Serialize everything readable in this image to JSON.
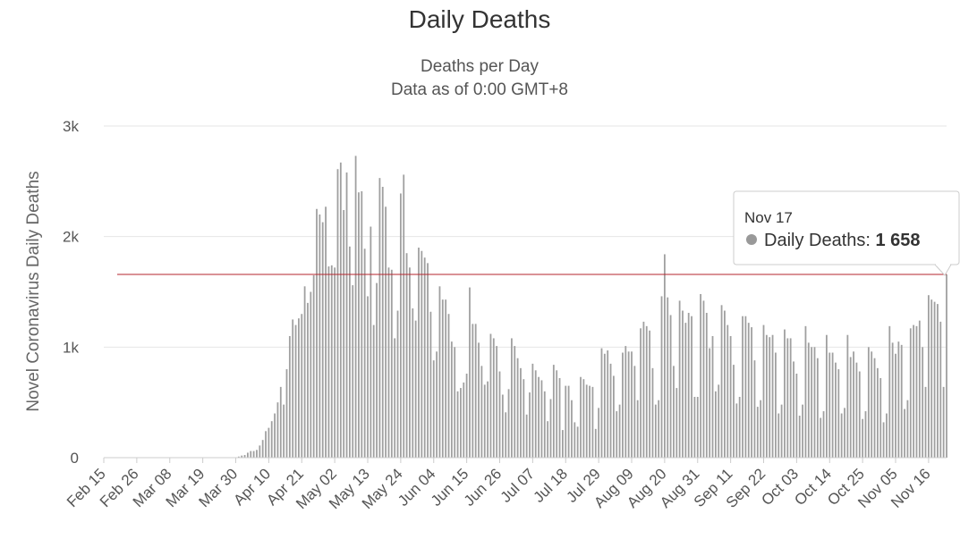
{
  "chart_data": {
    "type": "bar",
    "title": "Daily Deaths",
    "subtitle_line1": "Deaths per Day",
    "subtitle_line2": "Data as of 0:00 GMT+8",
    "ylabel": "Novel Coronavirus Daily Deaths",
    "ylim": [
      0,
      3000
    ],
    "yticks": [
      {
        "value": 0,
        "label": "0"
      },
      {
        "value": 1000,
        "label": "1k"
      },
      {
        "value": 2000,
        "label": "2k"
      },
      {
        "value": 3000,
        "label": "3k"
      }
    ],
    "start_date": "Feb 15",
    "x_tick_labels": [
      "Feb 15",
      "Feb 26",
      "Mar 08",
      "Mar 19",
      "Mar 30",
      "Apr 10",
      "Apr 21",
      "May 02",
      "May 13",
      "May 24",
      "Jun 04",
      "Jun 15",
      "Jun 26",
      "Jul 07",
      "Jul 18",
      "Jul 29",
      "Aug 09",
      "Aug 20",
      "Aug 31",
      "Sep 11",
      "Sep 22",
      "Oct 03",
      "Oct 14",
      "Oct 25",
      "Nov 05",
      "Nov 16"
    ],
    "series": [
      {
        "name": "Daily Deaths",
        "color": "#a0a0a0",
        "values": [
          0,
          0,
          0,
          0,
          0,
          0,
          0,
          0,
          0,
          0,
          0,
          0,
          0,
          0,
          0,
          0,
          0,
          0,
          0,
          0,
          0,
          0,
          0,
          0,
          0,
          0,
          0,
          0,
          0,
          0,
          0,
          0,
          0,
          0,
          0,
          0,
          0,
          0,
          0,
          0,
          0,
          0,
          0,
          2,
          3,
          10,
          19,
          24,
          45,
          60,
          60,
          70,
          110,
          160,
          240,
          270,
          330,
          400,
          500,
          640,
          480,
          800,
          1100,
          1250,
          1200,
          1260,
          1300,
          1550,
          1400,
          1500,
          1650,
          2250,
          2200,
          2130,
          2270,
          1730,
          1740,
          1720,
          2610,
          2670,
          2240,
          2580,
          1910,
          1560,
          2730,
          2400,
          2410,
          1890,
          1460,
          2090,
          1200,
          1580,
          2530,
          2450,
          2270,
          1720,
          1700,
          1080,
          1330,
          2390,
          2560,
          1850,
          1720,
          1350,
          1240,
          1900,
          1870,
          1810,
          1760,
          1320,
          880,
          960,
          1550,
          1430,
          1430,
          1300,
          1050,
          1000,
          600,
          630,
          680,
          760,
          1540,
          1210,
          1210,
          1040,
          830,
          660,
          690,
          1120,
          1080,
          1010,
          780,
          570,
          410,
          620,
          1080,
          1010,
          900,
          810,
          710,
          390,
          590,
          850,
          790,
          730,
          700,
          600,
          330,
          530,
          840,
          790,
          720,
          250,
          650,
          650,
          520,
          320,
          280,
          730,
          710,
          660,
          650,
          640,
          260,
          450,
          990,
          940,
          970,
          850,
          740,
          420,
          480,
          950,
          1010,
          960,
          960,
          830,
          520,
          1170,
          1230,
          1190,
          1150,
          810,
          480,
          520,
          1460,
          1840,
          1450,
          1290,
          830,
          630,
          1420,
          1330,
          1220,
          1310,
          1280,
          550,
          550,
          1480,
          1420,
          1310,
          990,
          1100,
          600,
          660,
          1380,
          1330,
          1200,
          1100,
          840,
          490,
          550,
          1280,
          1280,
          1220,
          1180,
          880,
          460,
          520,
          1200,
          1110,
          1090,
          1110,
          950,
          400,
          480,
          1160,
          1080,
          1080,
          870,
          760,
          380,
          480,
          1190,
          1040,
          1000,
          1000,
          900,
          360,
          420,
          1110,
          950,
          950,
          860,
          800,
          400,
          450,
          1110,
          910,
          960,
          860,
          780,
          350,
          420,
          1000,
          960,
          900,
          810,
          720,
          320,
          400,
          1190,
          1040,
          940,
          1050,
          1020,
          440,
          520,
          1170,
          1200,
          1190,
          1240,
          1000,
          640,
          1470,
          1430,
          1410,
          1390,
          1230,
          640,
          1658
        ]
      }
    ],
    "reference_line_value": 1658,
    "tooltip": {
      "date": "Nov 17",
      "series_label": "Daily Deaths:",
      "value_text": "1 658",
      "marker_color": "#999999"
    },
    "grid": true,
    "legend": "none"
  }
}
